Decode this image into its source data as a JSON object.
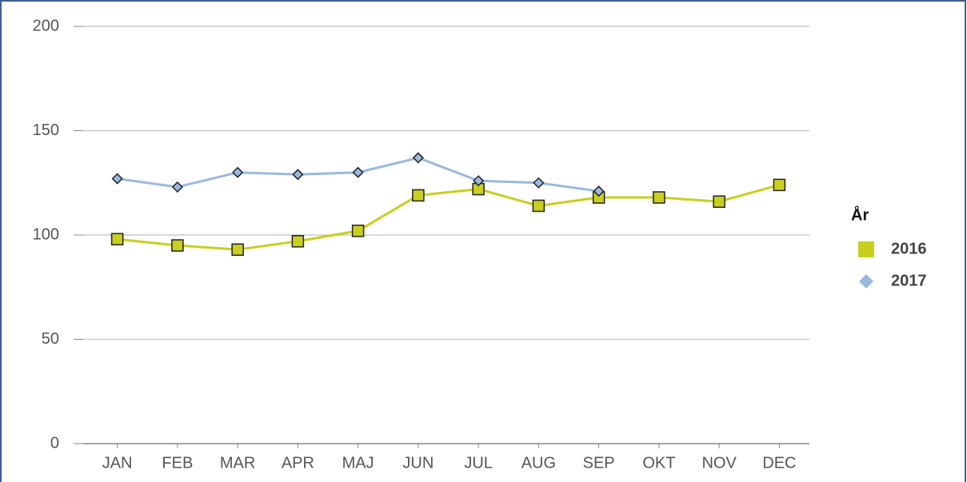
{
  "chart_data": {
    "type": "line",
    "categories": [
      "JAN",
      "FEB",
      "MAR",
      "APR",
      "MAJ",
      "JUN",
      "JUL",
      "AUG",
      "SEP",
      "OKT",
      "NOV",
      "DEC"
    ],
    "series": [
      {
        "name": "2016",
        "color": "#c9cf1f",
        "marker": "square",
        "values": [
          98,
          95,
          93,
          97,
          102,
          119,
          122,
          114,
          118,
          118,
          116,
          124
        ]
      },
      {
        "name": "2017",
        "color": "#9bb9de",
        "marker": "diamond",
        "values": [
          127,
          123,
          130,
          129,
          130,
          137,
          126,
          125,
          121,
          null,
          null,
          null
        ]
      }
    ],
    "ylim": [
      0,
      200
    ],
    "yticks": [
      0,
      50,
      100,
      150,
      200
    ],
    "grid": true,
    "legend_title": "År",
    "legend": "right"
  }
}
